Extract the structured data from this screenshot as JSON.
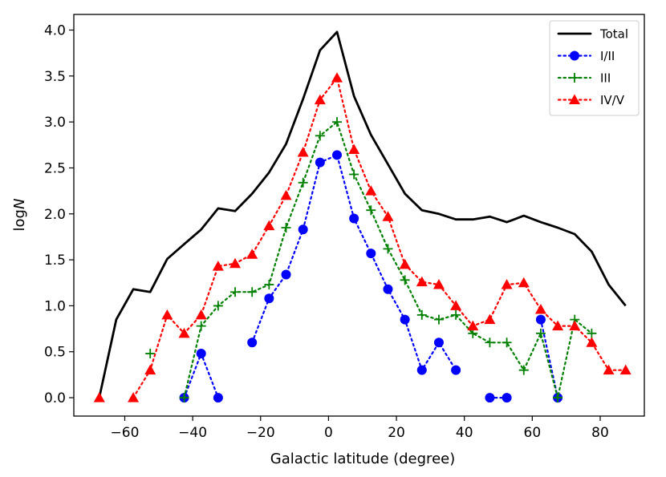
{
  "chart_data": {
    "type": "line",
    "xlabel": "Galactic latitude (degree)",
    "ylabel": "logN",
    "xlim": [
      -75,
      93
    ],
    "ylim": [
      -0.2,
      4.17
    ],
    "xticks": [
      -60,
      -40,
      -20,
      0,
      20,
      40,
      60,
      80
    ],
    "yticks": [
      0.0,
      0.5,
      1.0,
      1.5,
      2.0,
      2.5,
      3.0,
      3.5,
      4.0
    ],
    "legend_position": "top-right",
    "series": [
      {
        "name": "Total",
        "color": "#000000",
        "style": "solid",
        "marker": "none",
        "x": [
          -67.5,
          -62.5,
          -57.5,
          -52.5,
          -47.5,
          -42.5,
          -37.5,
          -32.5,
          -27.5,
          -22.5,
          -17.5,
          -12.5,
          -7.5,
          -2.5,
          2.5,
          7.5,
          12.5,
          17.5,
          22.5,
          27.5,
          32.5,
          37.5,
          42.5,
          47.5,
          52.5,
          57.5,
          62.5,
          67.5,
          72.5,
          77.5,
          82.5,
          87.5
        ],
        "y": [
          0.0,
          0.85,
          1.18,
          1.15,
          1.51,
          1.67,
          1.83,
          2.06,
          2.03,
          2.22,
          2.45,
          2.76,
          3.25,
          3.78,
          3.98,
          3.28,
          2.86,
          2.54,
          2.22,
          2.04,
          2.0,
          1.94,
          1.94,
          1.97,
          1.91,
          1.98,
          1.91,
          1.85,
          1.78,
          1.59,
          1.23,
          1.0
        ]
      },
      {
        "name": "I/II",
        "color": "#0000ff",
        "style": "dotted",
        "marker": "circle",
        "segments": [
          {
            "x": [
              -42.5,
              -37.5,
              -32.5
            ],
            "y": [
              0.0,
              0.48,
              0.0
            ]
          },
          {
            "x": [
              -22.5,
              -17.5,
              -12.5,
              -7.5,
              -2.5,
              2.5,
              7.5,
              12.5,
              17.5,
              22.5,
              27.5,
              32.5,
              37.5
            ],
            "y": [
              0.6,
              1.08,
              1.34,
              1.83,
              2.56,
              2.64,
              1.95,
              1.57,
              1.18,
              0.85,
              0.3,
              0.6,
              0.3
            ]
          },
          {
            "x": [
              47.5,
              52.5
            ],
            "y": [
              0.0,
              0.0
            ]
          },
          {
            "x": [
              62.5,
              67.5
            ],
            "y": [
              0.85,
              0.0
            ]
          }
        ]
      },
      {
        "name": "III",
        "color": "#008000",
        "style": "dotted",
        "marker": "plus",
        "segments": [
          {
            "x": [
              -52.5
            ],
            "y": [
              0.48
            ]
          },
          {
            "x": [
              -42.5,
              -37.5,
              -32.5,
              -27.5,
              -22.5,
              -17.5,
              -12.5,
              -7.5,
              -2.5,
              2.5,
              7.5,
              12.5,
              17.5,
              22.5,
              27.5,
              32.5,
              37.5,
              42.5,
              47.5,
              52.5,
              57.5,
              62.5,
              67.5,
              72.5,
              77.5
            ],
            "y": [
              0.0,
              0.78,
              1.0,
              1.15,
              1.15,
              1.23,
              1.85,
              2.34,
              2.85,
              3.0,
              2.43,
              2.04,
              1.62,
              1.28,
              0.9,
              0.85,
              0.9,
              0.7,
              0.6,
              0.6,
              0.3,
              0.7,
              0.0,
              0.85,
              0.7
            ]
          }
        ]
      },
      {
        "name": "IV/V",
        "color": "#ff0000",
        "style": "dotted",
        "marker": "triangle",
        "segments": [
          {
            "x": [
              -67.5
            ],
            "y": [
              0.0
            ]
          },
          {
            "x": [
              -57.5,
              -52.5,
              -47.5,
              -42.5,
              -37.5,
              -32.5,
              -27.5,
              -22.5,
              -17.5,
              -12.5,
              -7.5,
              -2.5,
              2.5,
              7.5,
              12.5,
              17.5,
              22.5,
              27.5,
              32.5,
              37.5,
              42.5,
              47.5,
              52.5,
              57.5,
              62.5,
              67.5,
              72.5,
              77.5,
              82.5,
              87.5
            ],
            "y": [
              0.0,
              0.3,
              0.9,
              0.7,
              0.9,
              1.43,
              1.46,
              1.56,
              1.87,
              2.2,
              2.67,
              3.24,
              3.48,
              2.7,
              2.25,
              1.97,
              1.45,
              1.26,
              1.23,
              1.0,
              0.78,
              0.85,
              1.23,
              1.25,
              0.96,
              0.78,
              0.78,
              0.6,
              0.3,
              0.3
            ]
          }
        ]
      }
    ]
  }
}
